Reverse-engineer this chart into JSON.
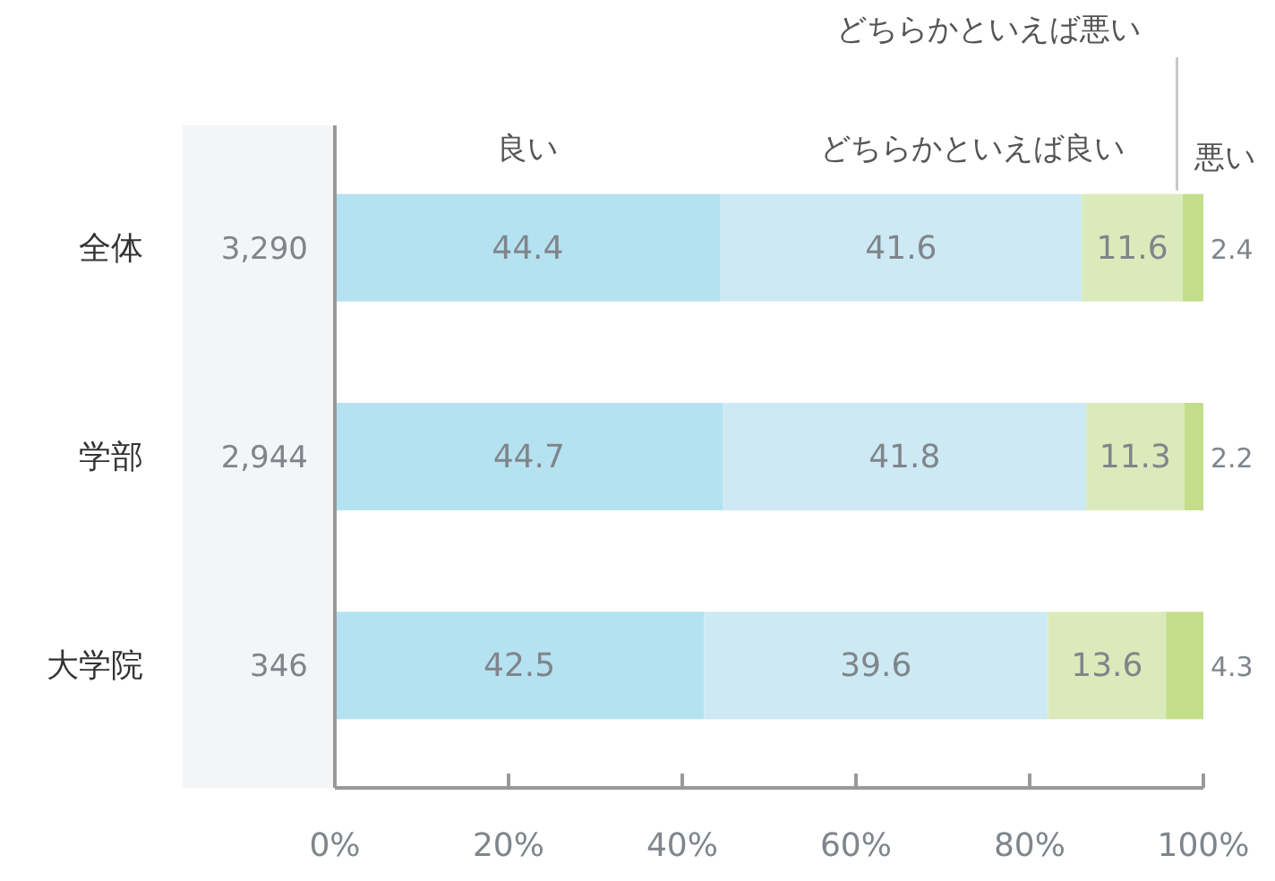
{
  "chart_data": {
    "type": "bar",
    "orientation": "horizontal",
    "stacked": true,
    "data_labels": true,
    "categories": [
      "全体",
      "学部",
      "大学院"
    ],
    "series": [
      {
        "name": "良い",
        "color": "#b5e2f0",
        "values": [
          44.4,
          44.7,
          42.5
        ]
      },
      {
        "name": "どちらかといえば良い",
        "color": "#cdeaf4",
        "values": [
          41.6,
          41.8,
          39.6
        ]
      },
      {
        "name": "どちらかといえば悪い",
        "color": "#dbeabb",
        "values": [
          11.6,
          11.3,
          13.6
        ]
      },
      {
        "name": "悪い",
        "color": "#c3de8a",
        "values": [
          2.4,
          2.2,
          4.3
        ]
      }
    ],
    "annotations": [
      "3,290",
      "2,944",
      "346"
    ],
    "xlim": [
      0,
      100
    ],
    "xticks": [
      {
        "value": 0,
        "label": "0%"
      },
      {
        "value": 20,
        "label": "20%"
      },
      {
        "value": 40,
        "label": "40%"
      },
      {
        "value": 60,
        "label": "60%"
      },
      {
        "value": 80,
        "label": "80%"
      },
      {
        "value": 100,
        "label": "100%"
      }
    ]
  }
}
